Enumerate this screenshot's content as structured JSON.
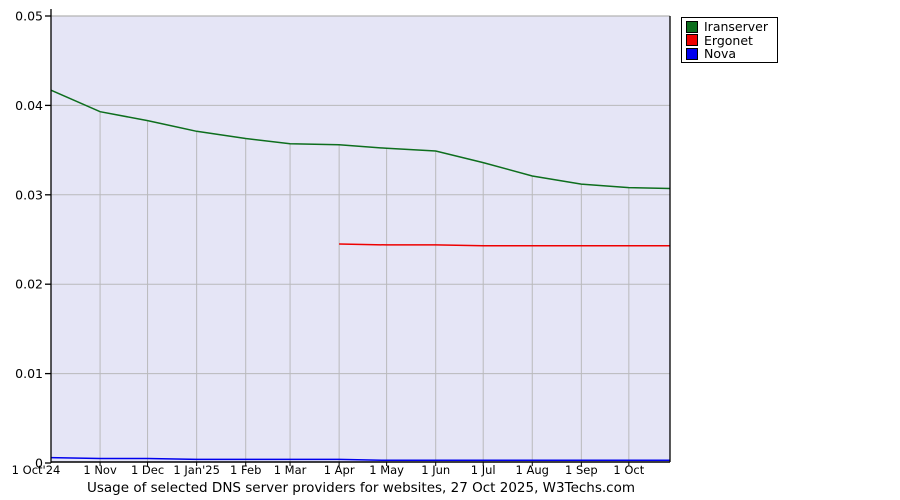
{
  "colors": {
    "plot_background": "#e5e5f6",
    "gridline": "#b9b9bb",
    "top_border": "#b3b3b3",
    "axis": "#000000",
    "iranserver_green": "#0d6e1d",
    "ergonet_red": "#ee0000",
    "nova_blue": "#0000ee"
  },
  "legend": {
    "items": [
      {
        "label": "Iranserver",
        "color": "#0d6e1d"
      },
      {
        "label": "Ergonet",
        "color": "#ee0000"
      },
      {
        "label": "Nova",
        "color": "#0000ee"
      }
    ]
  },
  "chart_data": {
    "type": "line",
    "title": "Usage of selected DNS server providers for websites, 27 Oct 2025, W3Techs.com",
    "ylim": [
      0,
      0.05
    ],
    "y_ticks": [
      {
        "value": 0,
        "label": "0"
      },
      {
        "value": 0.01,
        "label": "0.01"
      },
      {
        "value": 0.02,
        "label": "0.02"
      },
      {
        "value": 0.03,
        "label": "0.03"
      },
      {
        "value": 0.04,
        "label": "0.04"
      },
      {
        "value": 0.05,
        "label": "0.05"
      }
    ],
    "x_unit": "days since 1 Oct 2024",
    "x_max_day": 391,
    "x_ticks": [
      {
        "day": 0,
        "label": "1 Oct'24"
      },
      {
        "day": 31,
        "label": "1 Nov"
      },
      {
        "day": 61,
        "label": "1 Dec"
      },
      {
        "day": 92,
        "label": "1 Jan'25"
      },
      {
        "day": 123,
        "label": "1 Feb"
      },
      {
        "day": 151,
        "label": "1 Mar"
      },
      {
        "day": 182,
        "label": "1 Apr"
      },
      {
        "day": 212,
        "label": "1 May"
      },
      {
        "day": 243,
        "label": "1 Jun"
      },
      {
        "day": 273,
        "label": "1 Jul"
      },
      {
        "day": 304,
        "label": "1 Aug"
      },
      {
        "day": 335,
        "label": "1 Sep"
      },
      {
        "day": 365,
        "label": "1 Oct"
      }
    ],
    "grid": "horizontal gridlines full width; vertical month gridlines drawn from x-axis up to top series line",
    "legend_position": "top-right outside plot area",
    "series": [
      {
        "name": "Iranserver",
        "color": "#0d6e1d",
        "points": [
          {
            "day": 0,
            "value": 0.0417
          },
          {
            "day": 31,
            "value": 0.0393
          },
          {
            "day": 61,
            "value": 0.0383
          },
          {
            "day": 92,
            "value": 0.0371
          },
          {
            "day": 123,
            "value": 0.0363
          },
          {
            "day": 151,
            "value": 0.0357
          },
          {
            "day": 182,
            "value": 0.0356
          },
          {
            "day": 212,
            "value": 0.0352
          },
          {
            "day": 243,
            "value": 0.0349
          },
          {
            "day": 273,
            "value": 0.0336
          },
          {
            "day": 304,
            "value": 0.0321
          },
          {
            "day": 335,
            "value": 0.0312
          },
          {
            "day": 365,
            "value": 0.0308
          },
          {
            "day": 391,
            "value": 0.0307
          }
        ]
      },
      {
        "name": "Ergonet",
        "color": "#ee0000",
        "points": [
          {
            "day": 182,
            "value": 0.0245
          },
          {
            "day": 212,
            "value": 0.0244
          },
          {
            "day": 243,
            "value": 0.0244
          },
          {
            "day": 273,
            "value": 0.0243
          },
          {
            "day": 304,
            "value": 0.0243
          },
          {
            "day": 335,
            "value": 0.0243
          },
          {
            "day": 365,
            "value": 0.0243
          },
          {
            "day": 391,
            "value": 0.0243
          }
        ]
      },
      {
        "name": "Nova",
        "color": "#0000ee",
        "points": [
          {
            "day": 0,
            "value": 0.0006
          },
          {
            "day": 31,
            "value": 0.0005
          },
          {
            "day": 61,
            "value": 0.0005
          },
          {
            "day": 92,
            "value": 0.0004
          },
          {
            "day": 123,
            "value": 0.0004
          },
          {
            "day": 151,
            "value": 0.0004
          },
          {
            "day": 182,
            "value": 0.0004
          },
          {
            "day": 212,
            "value": 0.0003
          },
          {
            "day": 243,
            "value": 0.0003
          },
          {
            "day": 273,
            "value": 0.0003
          },
          {
            "day": 304,
            "value": 0.0003
          },
          {
            "day": 335,
            "value": 0.0003
          },
          {
            "day": 365,
            "value": 0.0003
          },
          {
            "day": 391,
            "value": 0.0003
          }
        ]
      }
    ]
  }
}
